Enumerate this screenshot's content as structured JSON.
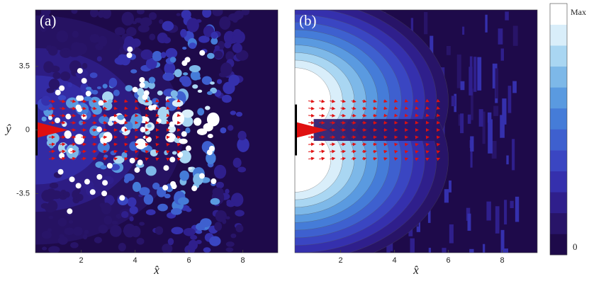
{
  "chart_data": [
    {
      "type": "contour",
      "panel_label": "(a)",
      "xlabel": "x̂",
      "ylabel": "ŷ",
      "xlim": [
        0.3,
        9.3
      ],
      "ylim": [
        -6.75,
        6.6
      ],
      "xticks": [
        2,
        4,
        6,
        8
      ],
      "yticks": [
        3.5,
        0,
        -3.5
      ]
    },
    {
      "type": "contour",
      "panel_label": "(b)",
      "xlabel": "x̂",
      "xlim": [
        0.3,
        9.3
      ],
      "ylim": [
        -6.75,
        6.6
      ],
      "xticks": [
        2,
        4,
        6,
        8
      ]
    }
  ],
  "colorbar": {
    "labels": [
      "Max",
      "0"
    ],
    "colors": [
      "#1e0a4a",
      "#281468",
      "#2f1f8c",
      "#3530ad",
      "#3a46c2",
      "#3e60cf",
      "#457cd8",
      "#5a9ae0",
      "#7db8e8",
      "#a9d6f2",
      "#d9eefa",
      "#ffffff"
    ]
  }
}
